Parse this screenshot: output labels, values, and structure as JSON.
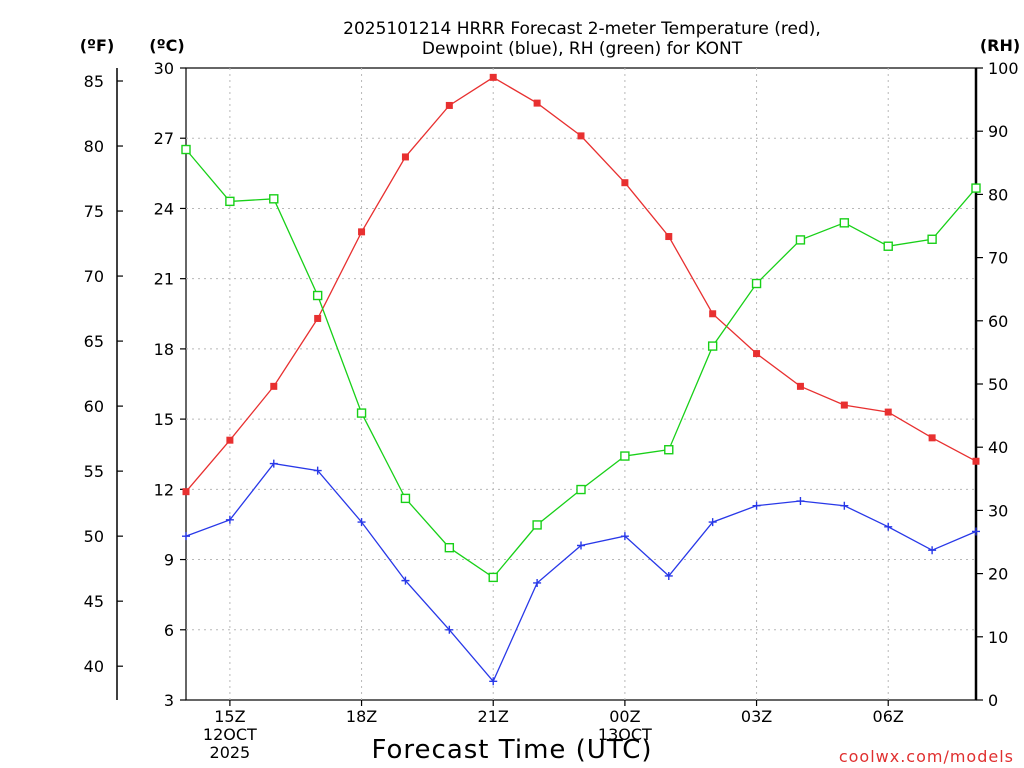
{
  "chart_data": {
    "type": "line",
    "title_lines": [
      "2025101214 HRRR Forecast 2-meter Temperature (red),",
      "Dewpoint (blue), RH (green) for KONT"
    ],
    "xlabel": "Forecast Time (UTC)",
    "credit": "coolwx.com/models",
    "hours": [
      14,
      15,
      16,
      17,
      18,
      19,
      20,
      21,
      22,
      23,
      24,
      25,
      26,
      27,
      28,
      29,
      30,
      31,
      32
    ],
    "x_ticks": [
      {
        "hour": 15,
        "lines": [
          "15Z",
          "12OCT",
          "2025"
        ]
      },
      {
        "hour": 18,
        "lines": [
          "18Z"
        ]
      },
      {
        "hour": 21,
        "lines": [
          "21Z"
        ]
      },
      {
        "hour": 24,
        "lines": [
          "00Z",
          "13OCT"
        ]
      },
      {
        "hour": 27,
        "lines": [
          "03Z"
        ]
      },
      {
        "hour": 30,
        "lines": [
          "06Z"
        ]
      }
    ],
    "axes": {
      "celsius": {
        "label": "(ºC)",
        "range": [
          3,
          30
        ],
        "ticks": [
          "30",
          "27",
          "24",
          "21",
          "18",
          "15",
          "12",
          "9",
          "6",
          "3"
        ]
      },
      "fahrenheit": {
        "label": "(ºF)",
        "ticks": [
          "85",
          "80",
          "75",
          "70",
          "65",
          "60",
          "55",
          "50",
          "45",
          "40"
        ]
      },
      "rh": {
        "label": "(RH)",
        "range": [
          0,
          100
        ],
        "ticks": [
          "100",
          "90",
          "80",
          "70",
          "60",
          "50",
          "40",
          "30",
          "20",
          "10",
          "0"
        ]
      }
    },
    "grid": true,
    "series": [
      {
        "name": "Temperature",
        "unit": "C",
        "color": "#e83030",
        "marker": "filled-square",
        "values": [
          11.9,
          14.1,
          16.4,
          19.3,
          23.0,
          26.2,
          28.4,
          29.6,
          28.5,
          27.1,
          25.1,
          22.8,
          19.5,
          17.8,
          16.4,
          15.6,
          15.3,
          14.2,
          13.2
        ]
      },
      {
        "name": "Dewpoint",
        "unit": "C",
        "color": "#2838e8",
        "marker": "plus",
        "values": [
          10.0,
          10.7,
          13.1,
          12.8,
          10.6,
          8.1,
          6.0,
          3.8,
          8.0,
          9.6,
          10.0,
          8.3,
          10.6,
          11.3,
          11.5,
          11.3,
          10.4,
          9.4,
          10.2
        ]
      },
      {
        "name": "RH",
        "unit": "%",
        "color": "#18d018",
        "marker": "open-square",
        "values": [
          87.1,
          78.9,
          79.3,
          64.0,
          45.4,
          31.9,
          24.1,
          19.4,
          27.7,
          33.3,
          38.6,
          39.6,
          56.0,
          65.9,
          72.8,
          75.5,
          71.8,
          72.9,
          81.0
        ]
      }
    ]
  }
}
